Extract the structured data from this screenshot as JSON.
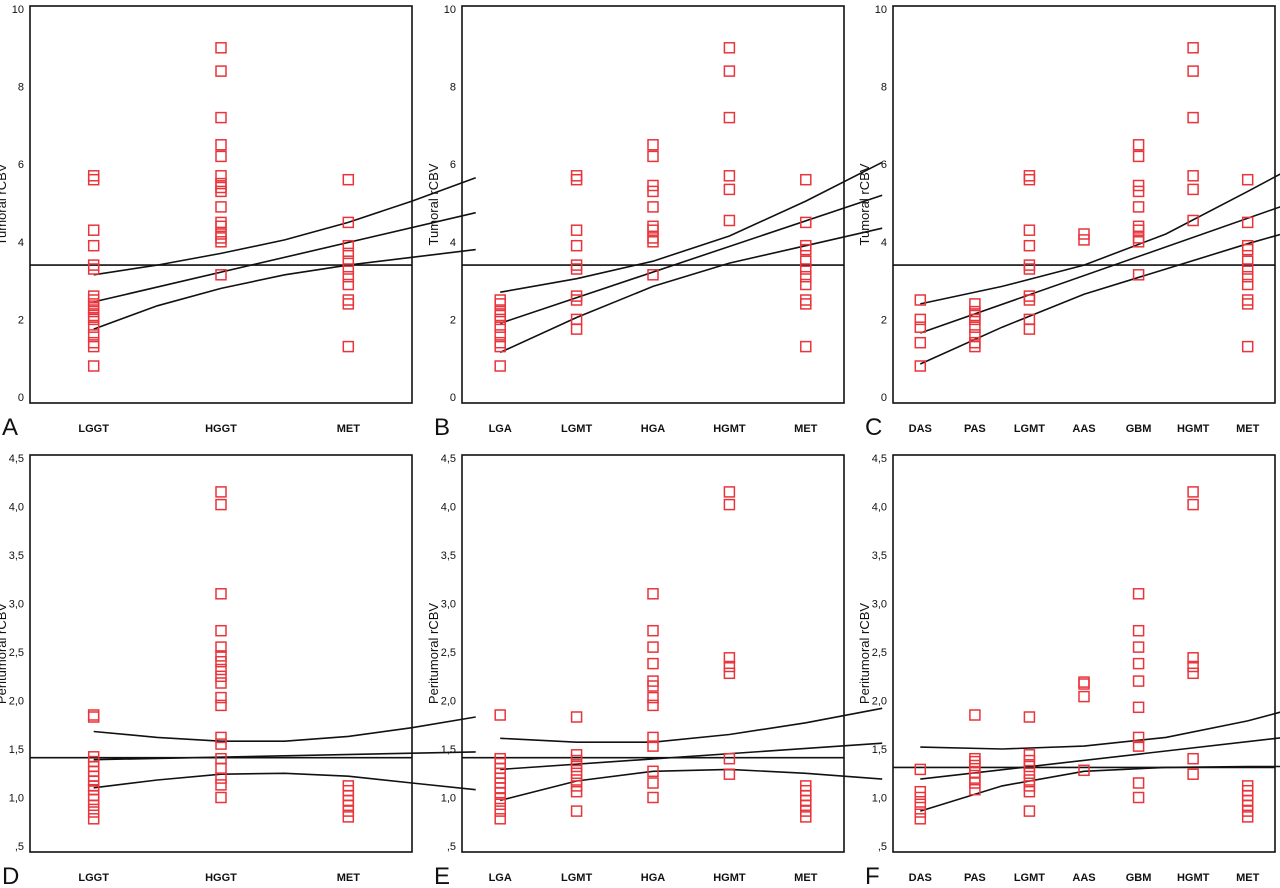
{
  "chart_data": [
    {
      "type": "scatter",
      "panel_letter": "A",
      "ylabel": "Tumoral rCBV",
      "ylim": [
        0,
        10
      ],
      "yticks": [
        0,
        2,
        4,
        6,
        8,
        10
      ],
      "ytick_labels": [
        "0",
        "2",
        "4",
        "6",
        "8",
        "10"
      ],
      "categories": [
        "LGGT",
        "HGGT",
        "MET"
      ],
      "points": [
        [
          0.8,
          1.3,
          1.4,
          1.6,
          1.8,
          2.0,
          2.1,
          2.2,
          2.3,
          2.4,
          2.5,
          2.6,
          3.3,
          3.4,
          3.9,
          4.3,
          5.6,
          5.7
        ],
        [
          3.15,
          4.0,
          4.1,
          4.2,
          4.4,
          4.5,
          4.9,
          5.3,
          5.4,
          5.5,
          5.7,
          6.2,
          6.5,
          7.2,
          8.4,
          9.0
        ],
        [
          1.3,
          2.4,
          2.5,
          2.9,
          3.1,
          3.3,
          3.5,
          3.7,
          3.9,
          4.5,
          5.6
        ]
      ],
      "regression": {
        "x": [
          0.5,
          3.5
        ],
        "y": [
          2.45,
          4.75
        ]
      },
      "ci_upper": {
        "x": [
          0.5,
          1.0,
          1.5,
          2.0,
          2.5,
          3.0,
          3.5
        ],
        "y": [
          3.15,
          3.4,
          3.7,
          4.05,
          4.5,
          5.05,
          5.65
        ]
      },
      "ci_lower": {
        "x": [
          0.5,
          1.0,
          1.5,
          2.0,
          2.5,
          3.0,
          3.5
        ],
        "y": [
          1.75,
          2.35,
          2.8,
          3.15,
          3.4,
          3.6,
          3.8
        ]
      },
      "reference_line": 3.4
    },
    {
      "type": "scatter",
      "panel_letter": "B",
      "ylabel": "Tumoral rCBV",
      "ylim": [
        0,
        10
      ],
      "yticks": [
        0,
        2,
        4,
        6,
        8,
        10
      ],
      "ytick_labels": [
        "0",
        "2",
        "4",
        "6",
        "8",
        "10"
      ],
      "categories": [
        "LGA",
        "LGMT",
        "HGA",
        "HGMT",
        "MET"
      ],
      "points": [
        [
          0.8,
          1.3,
          1.4,
          1.6,
          1.8,
          2.0,
          2.1,
          2.2,
          2.4,
          2.5
        ],
        [
          1.75,
          2.0,
          2.5,
          2.6,
          3.3,
          3.4,
          3.9,
          4.3,
          5.6,
          5.7
        ],
        [
          3.15,
          4.0,
          4.1,
          4.3,
          4.4,
          4.9,
          5.3,
          5.45,
          6.2,
          6.5
        ],
        [
          4.55,
          5.35,
          5.7,
          7.2,
          8.4,
          9.0
        ],
        [
          1.3,
          2.4,
          2.5,
          2.9,
          3.1,
          3.3,
          3.5,
          3.8,
          3.9,
          4.5,
          5.6
        ]
      ],
      "regression": {
        "x": [
          0.5,
          5.5
        ],
        "y": [
          1.9,
          5.2
        ]
      },
      "ci_upper": {
        "x": [
          0.5,
          1.5,
          2.5,
          3.5,
          4.5,
          5.5
        ],
        "y": [
          2.7,
          3.05,
          3.5,
          4.15,
          5.05,
          6.05
        ]
      },
      "ci_lower": {
        "x": [
          0.5,
          1.5,
          2.5,
          3.5,
          4.5,
          5.5
        ],
        "y": [
          1.15,
          2.05,
          2.85,
          3.45,
          3.9,
          4.35
        ]
      },
      "reference_line": 3.4
    },
    {
      "type": "scatter",
      "panel_letter": "C",
      "ylabel": "Tumoral rCBV",
      "ylim": [
        0,
        10
      ],
      "yticks": [
        0,
        2,
        4,
        6,
        8,
        10
      ],
      "ytick_labels": [
        "0",
        "2",
        "4",
        "6",
        "8",
        "10"
      ],
      "categories": [
        "DAS",
        "PAS",
        "LGMT",
        "AAS",
        "GBM",
        "HGMT",
        "MET"
      ],
      "points": [
        [
          0.8,
          1.4,
          1.8,
          2.0,
          2.5
        ],
        [
          1.3,
          1.4,
          1.6,
          1.8,
          2.0,
          2.1,
          2.2,
          2.4
        ],
        [
          1.75,
          2.0,
          2.5,
          2.6,
          3.3,
          3.4,
          3.9,
          4.3,
          5.6,
          5.7
        ],
        [
          4.05,
          4.2
        ],
        [
          3.15,
          4.0,
          4.1,
          4.3,
          4.4,
          4.9,
          5.3,
          5.45,
          6.2,
          6.5
        ],
        [
          4.55,
          5.35,
          5.7,
          7.2,
          8.4,
          9.0
        ],
        [
          1.3,
          2.4,
          2.5,
          2.9,
          3.1,
          3.3,
          3.5,
          3.8,
          3.9,
          4.5,
          5.6
        ]
      ],
      "regression": {
        "x": [
          0.5,
          7.5
        ],
        "y": [
          1.65,
          5.1
        ]
      },
      "ci_upper": {
        "x": [
          0.5,
          2.0,
          3.5,
          5.0,
          6.5,
          7.5
        ],
        "y": [
          2.4,
          2.85,
          3.4,
          4.2,
          5.3,
          6.05
        ]
      },
      "ci_lower": {
        "x": [
          0.5,
          2.0,
          3.5,
          5.0,
          6.5,
          7.5
        ],
        "y": [
          0.85,
          1.8,
          2.65,
          3.3,
          3.95,
          4.35
        ]
      },
      "reference_line": 3.4
    },
    {
      "type": "scatter",
      "panel_letter": "D",
      "ylabel": "Peritumoral rCBV",
      "ylim": [
        0.5,
        4.5
      ],
      "yticks": [
        0.5,
        1.0,
        1.5,
        2.0,
        2.5,
        3.0,
        3.5,
        4.0,
        4.5
      ],
      "ytick_labels": [
        ",5",
        "1,0",
        "1,5",
        "2,0",
        "2,5",
        "3,0",
        "3,5",
        "4,0",
        "4,5"
      ],
      "categories": [
        "LGGT",
        "HGGT",
        "MET"
      ],
      "points": [
        [
          0.78,
          0.85,
          0.92,
          0.98,
          1.02,
          1.08,
          1.12,
          1.17,
          1.22,
          1.27,
          1.32,
          1.37,
          1.42,
          1.83,
          1.85
        ],
        [
          1.0,
          1.13,
          1.2,
          1.3,
          1.4,
          1.55,
          1.62,
          1.95,
          2.03,
          2.18,
          2.25,
          2.32,
          2.4,
          2.46,
          2.55,
          2.72,
          3.1,
          4.02,
          4.15
        ],
        [
          0.8,
          0.86,
          0.92,
          0.97,
          1.02,
          1.07,
          1.12
        ]
      ],
      "regression": {
        "x": [
          0.5,
          3.5
        ],
        "y": [
          1.39,
          1.47
        ]
      },
      "ci_upper": {
        "x": [
          0.5,
          1.0,
          1.5,
          2.0,
          2.5,
          3.0,
          3.5
        ],
        "y": [
          1.68,
          1.62,
          1.58,
          1.58,
          1.63,
          1.72,
          1.83
        ]
      },
      "ci_lower": {
        "x": [
          0.5,
          1.0,
          1.5,
          2.0,
          2.5,
          3.0,
          3.5
        ],
        "y": [
          1.1,
          1.18,
          1.24,
          1.25,
          1.22,
          1.15,
          1.08
        ]
      },
      "reference_line": 1.41
    },
    {
      "type": "scatter",
      "panel_letter": "E",
      "ylabel": "Peritumoral rCBV",
      "ylim": [
        0.5,
        4.5
      ],
      "yticks": [
        0.5,
        1.0,
        1.5,
        2.0,
        2.5,
        3.0,
        3.5,
        4.0,
        4.5
      ],
      "ytick_labels": [
        ",5",
        "1,0",
        "1,5",
        "2,0",
        "2,5",
        "3,0",
        "3,5",
        "4,0",
        "4,5"
      ],
      "categories": [
        "LGA",
        "LGMT",
        "HGA",
        "HGMT",
        "MET"
      ],
      "points": [
        [
          0.78,
          0.86,
          0.93,
          0.99,
          1.05,
          1.1,
          1.15,
          1.2,
          1.25,
          1.3,
          1.35,
          1.4,
          1.85
        ],
        [
          0.86,
          1.06,
          1.12,
          1.18,
          1.25,
          1.32,
          1.38,
          1.44,
          1.83
        ],
        [
          1.0,
          1.15,
          1.27,
          1.53,
          1.62,
          1.95,
          2.03,
          2.15,
          2.2,
          2.38,
          2.55,
          2.72,
          3.1
        ],
        [
          1.24,
          1.4,
          2.28,
          2.35,
          2.44,
          4.02,
          4.15
        ],
        [
          0.8,
          0.86,
          0.92,
          0.97,
          1.02,
          1.07,
          1.12
        ]
      ],
      "regression": {
        "x": [
          0.5,
          5.5
        ],
        "y": [
          1.29,
          1.56
        ]
      },
      "ci_upper": {
        "x": [
          0.5,
          1.5,
          2.5,
          3.5,
          4.5,
          5.5
        ],
        "y": [
          1.61,
          1.57,
          1.57,
          1.65,
          1.77,
          1.92
        ]
      },
      "ci_lower": {
        "x": [
          0.5,
          1.5,
          2.5,
          3.5,
          4.5,
          5.5
        ],
        "y": [
          0.97,
          1.17,
          1.27,
          1.29,
          1.25,
          1.19
        ]
      },
      "reference_line": 1.41
    },
    {
      "type": "scatter",
      "panel_letter": "F",
      "ylabel": "Peritumoral rCBV",
      "ylim": [
        0.5,
        4.5
      ],
      "yticks": [
        0.5,
        1.0,
        1.5,
        2.0,
        2.5,
        3.0,
        3.5,
        4.0,
        4.5
      ],
      "ytick_labels": [
        ",5",
        "1,0",
        "1,5",
        "2,0",
        "2,5",
        "3,0",
        "3,5",
        "4,0",
        "4,5"
      ],
      "categories": [
        "DAS",
        "PAS",
        "LGMT",
        "AAS",
        "GBM",
        "HGMT",
        "MET"
      ],
      "points": [
        [
          0.78,
          0.85,
          0.93,
          1.0,
          1.06,
          1.29
        ],
        [
          1.08,
          1.15,
          1.2,
          1.26,
          1.33,
          1.37,
          1.4,
          1.85
        ],
        [
          0.86,
          1.06,
          1.12,
          1.18,
          1.25,
          1.32,
          1.38,
          1.44,
          1.83
        ],
        [
          1.28,
          2.04,
          2.17,
          2.19
        ],
        [
          1.0,
          1.15,
          1.53,
          1.62,
          1.93,
          2.2,
          2.38,
          2.55,
          2.72,
          3.1
        ],
        [
          1.24,
          1.4,
          2.28,
          2.35,
          2.44,
          4.02,
          4.15
        ],
        [
          0.8,
          0.86,
          0.92,
          0.97,
          1.02,
          1.07,
          1.12
        ]
      ],
      "regression": {
        "x": [
          0.5,
          7.5
        ],
        "y": [
          1.19,
          1.64
        ]
      },
      "ci_upper": {
        "x": [
          0.5,
          2.0,
          3.5,
          5.0,
          6.5,
          7.5
        ],
        "y": [
          1.52,
          1.5,
          1.53,
          1.62,
          1.79,
          1.94
        ]
      },
      "ci_lower": {
        "x": [
          0.5,
          2.0,
          3.5,
          5.0,
          6.5,
          7.5
        ],
        "y": [
          0.86,
          1.12,
          1.27,
          1.31,
          1.32,
          1.32
        ]
      },
      "reference_line": 1.31
    }
  ],
  "colors": {
    "markers": "#e8343a",
    "lines": "#111111",
    "background": "#ffffff"
  }
}
